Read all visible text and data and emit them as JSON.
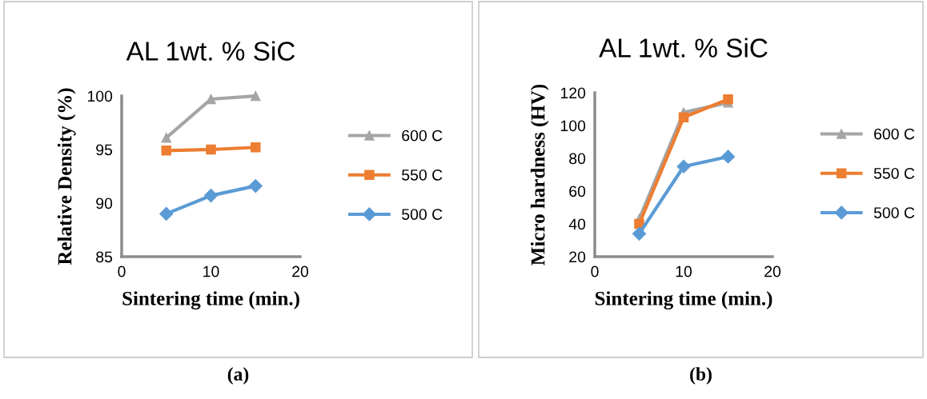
{
  "chart_data": [
    {
      "type": "line",
      "title": "AL 1wt. % SiC",
      "xlabel": "Sintering time (min.)",
      "ylabel": "Relative Density (%)",
      "annotations": [
        "(a)"
      ],
      "x": [
        5,
        10,
        15
      ],
      "series": [
        {
          "name": "600 C",
          "color": "#a5a5a5",
          "marker": "triangle",
          "values": [
            96.1,
            99.7,
            100
          ]
        },
        {
          "name": "550 C",
          "color": "#ed7d31",
          "marker": "square",
          "values": [
            94.9,
            95.0,
            95.2
          ]
        },
        {
          "name": "500 C",
          "color": "#5b9bd5",
          "marker": "diamond",
          "values": [
            89.0,
            90.7,
            91.6
          ]
        }
      ],
      "xlim": [
        0,
        20
      ],
      "xticks": [
        0,
        10,
        20
      ],
      "ylim": [
        85,
        100
      ],
      "yticks": [
        85,
        90,
        95,
        100
      ],
      "grid": false,
      "legend": "right"
    },
    {
      "type": "line",
      "title": "AL 1wt. % SiC",
      "xlabel": "Sintering time (min.)",
      "ylabel": "Micro hardness (HV)",
      "annotations": [
        "(b)"
      ],
      "x": [
        5,
        10,
        15
      ],
      "series": [
        {
          "name": "600 C",
          "color": "#a5a5a5",
          "marker": "triangle",
          "values": [
            43,
            108,
            114
          ]
        },
        {
          "name": "550 C",
          "color": "#ed7d31",
          "marker": "square",
          "values": [
            40,
            105,
            116
          ]
        },
        {
          "name": "500 C",
          "color": "#5b9bd5",
          "marker": "diamond",
          "values": [
            34,
            75,
            81
          ]
        }
      ],
      "xlim": [
        0,
        20
      ],
      "xticks": [
        0,
        10,
        20
      ],
      "ylim": [
        20,
        120
      ],
      "yticks": [
        20,
        40,
        60,
        80,
        100,
        120
      ],
      "grid": false,
      "legend": "right"
    }
  ]
}
